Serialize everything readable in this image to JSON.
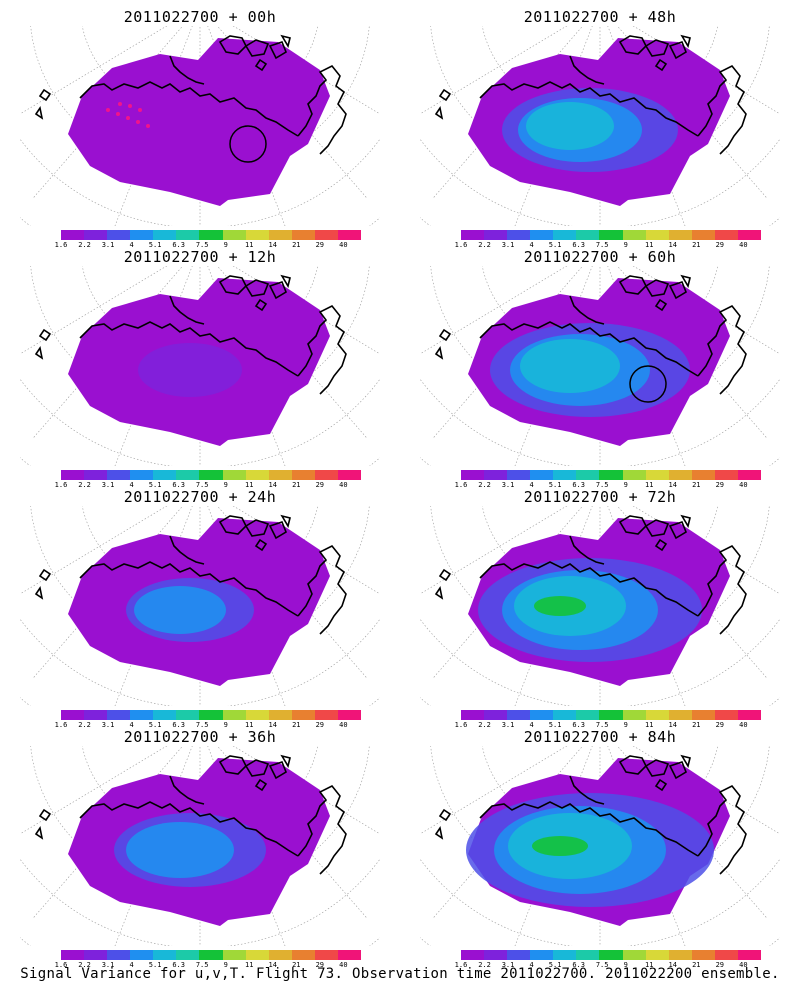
{
  "figure": {
    "caption": "Signal Variance for u,v,T. Flight 73. Observation time 2011022700. 2011022200 ensemble."
  },
  "colorbar": {
    "ticks": [
      "1.6",
      "2.2",
      "3.1",
      "4",
      "5.1",
      "6.3",
      "7.5",
      "9",
      "11",
      "14",
      "21",
      "29",
      "40"
    ],
    "colors": [
      "#9a10d0",
      "#7e22dc",
      "#4d50e8",
      "#1f8ff0",
      "#18b8d8",
      "#1ccaa8",
      "#14c238",
      "#a0d838",
      "#d8d838",
      "#e0b030",
      "#e88030",
      "#f04848",
      "#f01478"
    ]
  },
  "panels": [
    {
      "title": "2011022700 + 00h",
      "level": 0,
      "circle": true,
      "red_track": true
    },
    {
      "title": "2011022700 + 48h",
      "level": 4,
      "circle": false,
      "red_track": false
    },
    {
      "title": "2011022700 + 12h",
      "level": 1,
      "circle": false,
      "red_track": false
    },
    {
      "title": "2011022700 + 60h",
      "level": 5,
      "circle": true,
      "red_track": false
    },
    {
      "title": "2011022700 + 24h",
      "level": 2,
      "circle": false,
      "red_track": false
    },
    {
      "title": "2011022700 + 72h",
      "level": 6,
      "circle": false,
      "red_track": false
    },
    {
      "title": "2011022700 + 36h",
      "level": 3,
      "circle": false,
      "red_track": false
    },
    {
      "title": "2011022700 + 84h",
      "level": 7,
      "circle": false,
      "red_track": false
    }
  ]
}
